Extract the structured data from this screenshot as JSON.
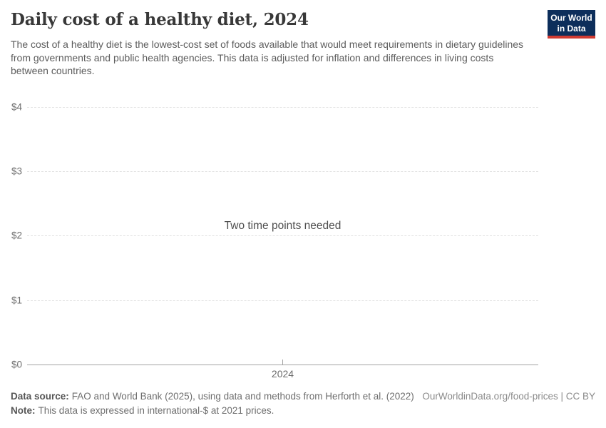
{
  "header": {
    "title": "Daily cost of a healthy diet, 2024",
    "subtitle": "The cost of a healthy diet is the lowest-cost set of foods available that would meet requirements in dietary guidelines from governments and public health agencies. This data is adjusted for inflation and differences in living costs between countries."
  },
  "logo": {
    "line1": "Our World",
    "line2": "in Data",
    "bg_color": "#0d2e5b",
    "bar_color": "#d13b32"
  },
  "chart_data": {
    "type": "line",
    "title": "Daily cost of a healthy diet, 2024",
    "series": [],
    "message": "Two time points needed",
    "x_ticks": [
      "2024"
    ],
    "y_ticks": [
      "$4",
      "$3",
      "$2",
      "$1",
      "$0"
    ],
    "ylim": [
      0,
      4
    ],
    "xlabel": "",
    "ylabel": "",
    "grid": "horizontal dashed",
    "legend": "none"
  },
  "footer": {
    "data_source_label": "Data source:",
    "data_source": "FAO and World Bank (2025), using data and methods from Herforth et al. (2022)",
    "note_label": "Note:",
    "note": "This data is expressed in international-$ at 2021 prices.",
    "attribution": "OurWorldinData.org/food-prices | CC BY"
  }
}
